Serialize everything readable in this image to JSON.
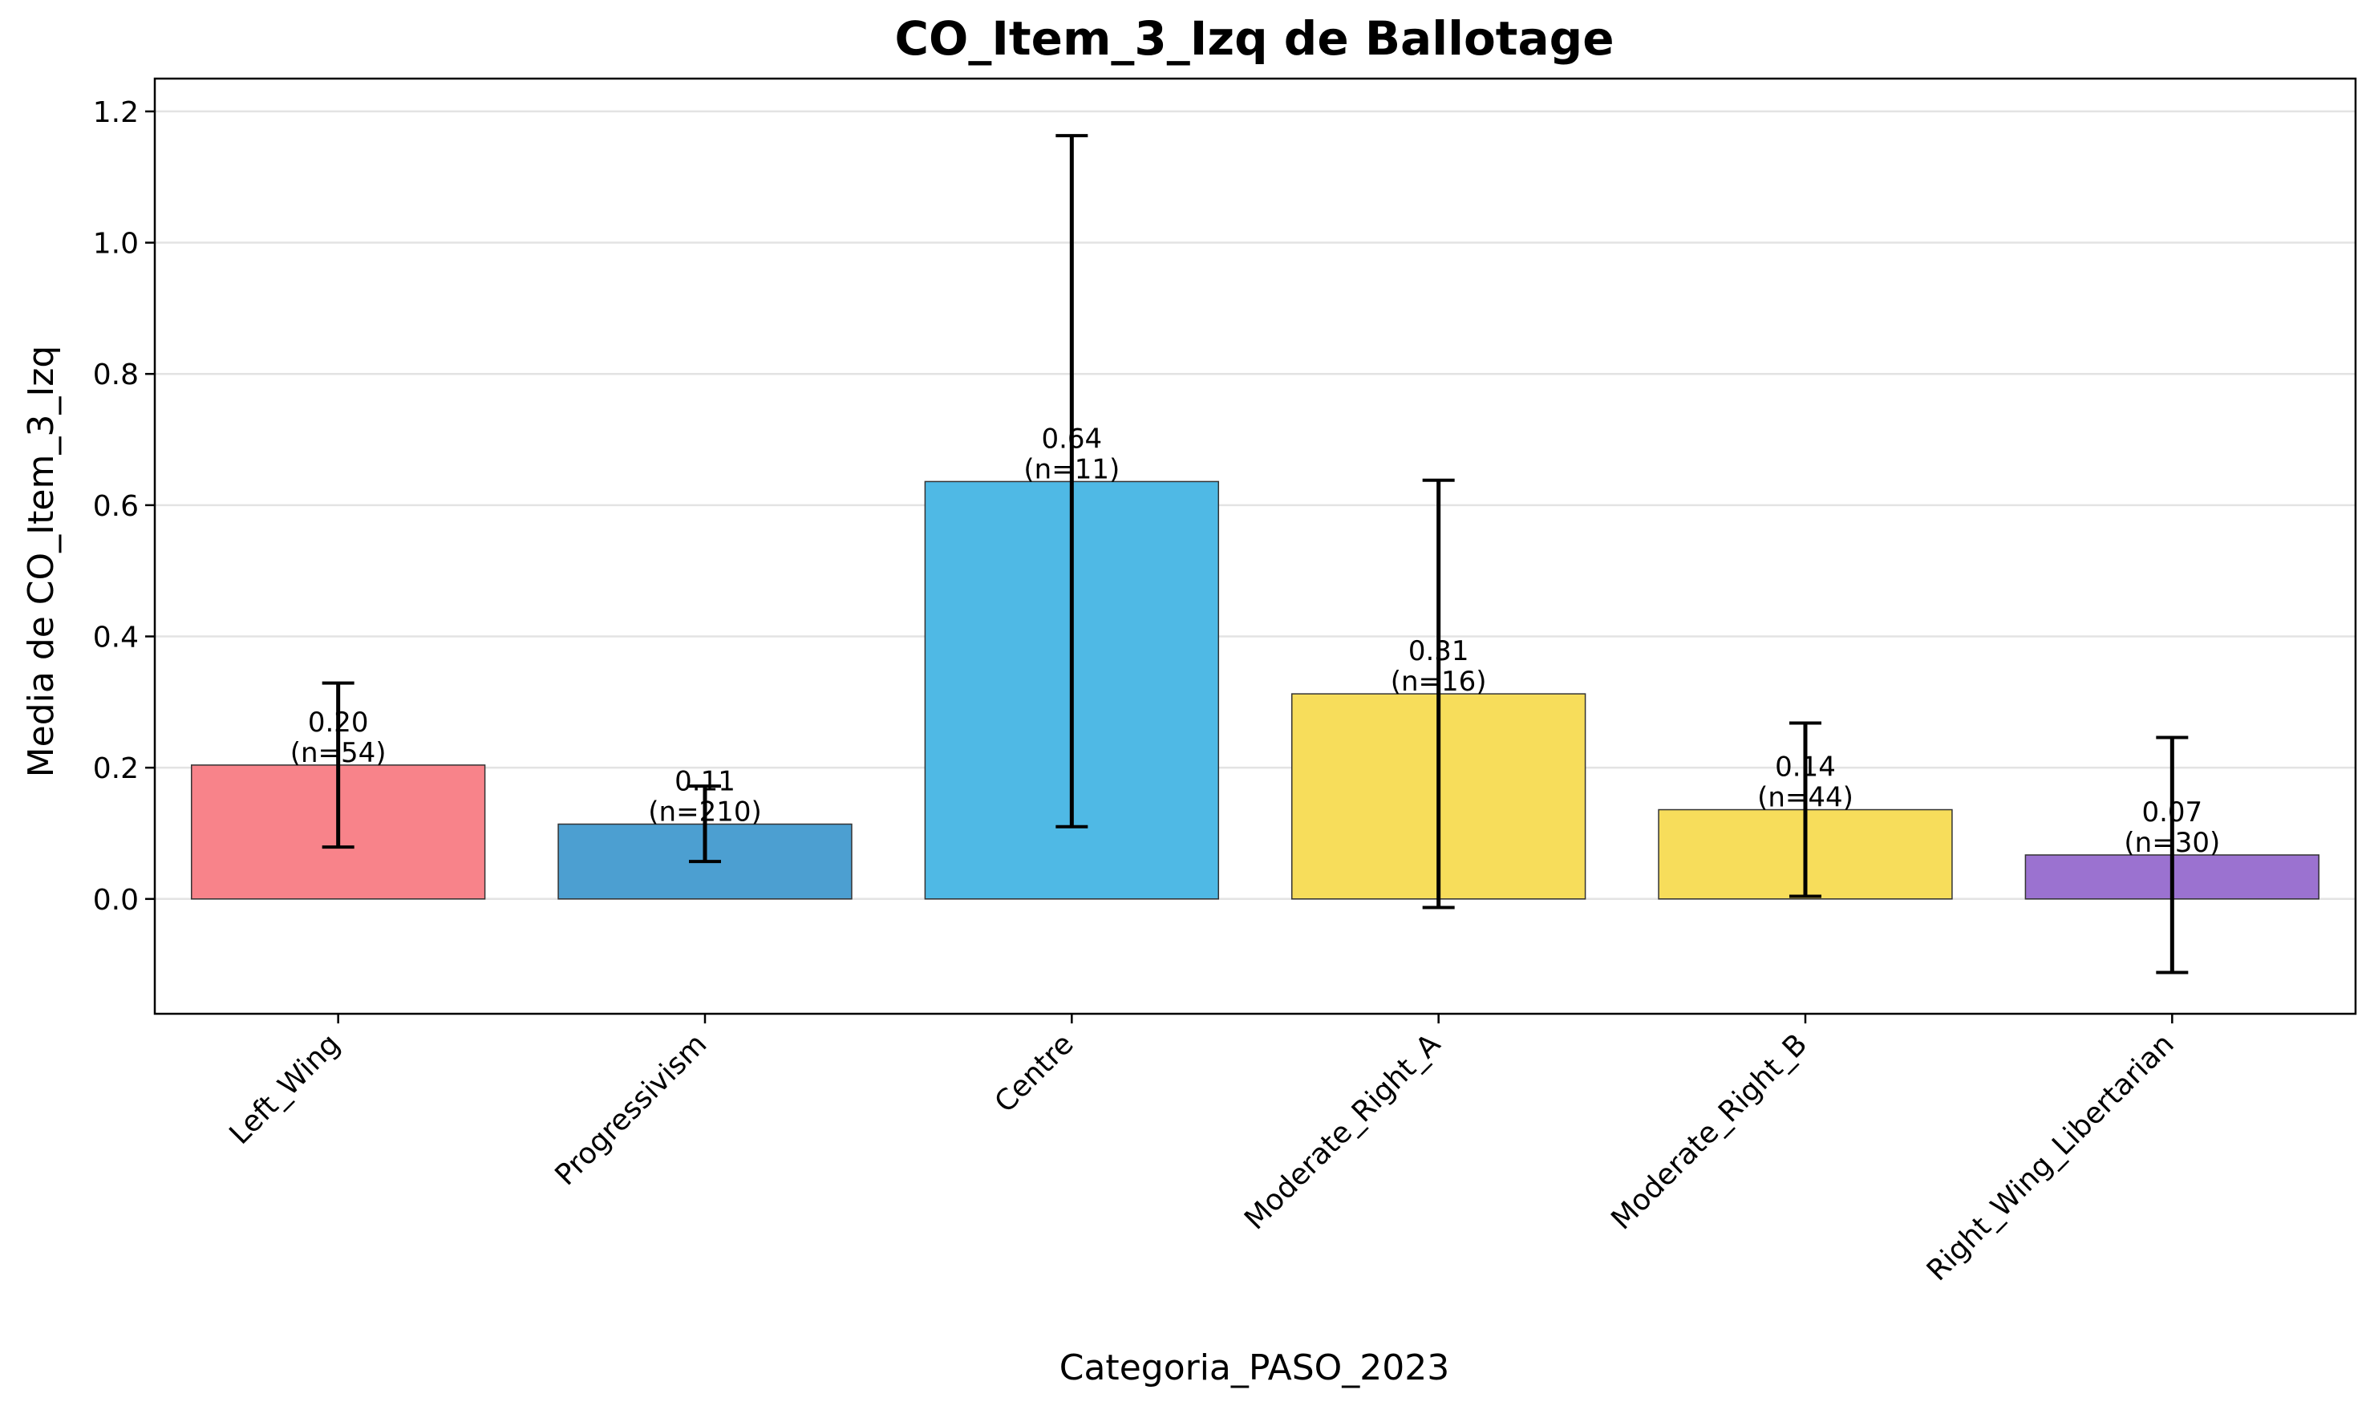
{
  "chart_data": {
    "type": "bar",
    "title": "CO_Item_3_Izq de Ballotage",
    "xlabel": "Categoria_PASO_2023",
    "ylabel": "Media de CO_Item_3_Izq",
    "ylim": [
      -0.175,
      1.25
    ],
    "yticks": [
      0.0,
      0.2,
      0.4,
      0.6,
      0.8,
      1.0,
      1.2
    ],
    "ytick_labels": [
      "0.0",
      "0.2",
      "0.4",
      "0.6",
      "0.8",
      "1.0",
      "1.2"
    ],
    "grid": "horizontal",
    "categories": [
      "Left_Wing",
      "Progressivism",
      "Centre",
      "Moderate_Right_A",
      "Moderate_Right_B",
      "Right_Wing_Libertarian"
    ],
    "values": [
      0.204,
      0.114,
      0.636,
      0.3125,
      0.136,
      0.067
    ],
    "error_low": [
      0.079,
      0.057,
      0.11,
      -0.013,
      0.004,
      -0.112
    ],
    "error_high": [
      0.329,
      0.172,
      1.163,
      0.638,
      0.268,
      0.246
    ],
    "value_labels": [
      "0.20",
      "0.11",
      "0.64",
      "0.31",
      "0.14",
      "0.07"
    ],
    "n_labels": [
      "(n=54)",
      "(n=210)",
      "(n=11)",
      "(n=16)",
      "(n=44)",
      "(n=30)"
    ],
    "colors": [
      "#f8838a",
      "#4c9fd1",
      "#4fb9e5",
      "#f7dd5b",
      "#f7dd5b",
      "#9b72d0"
    ]
  }
}
